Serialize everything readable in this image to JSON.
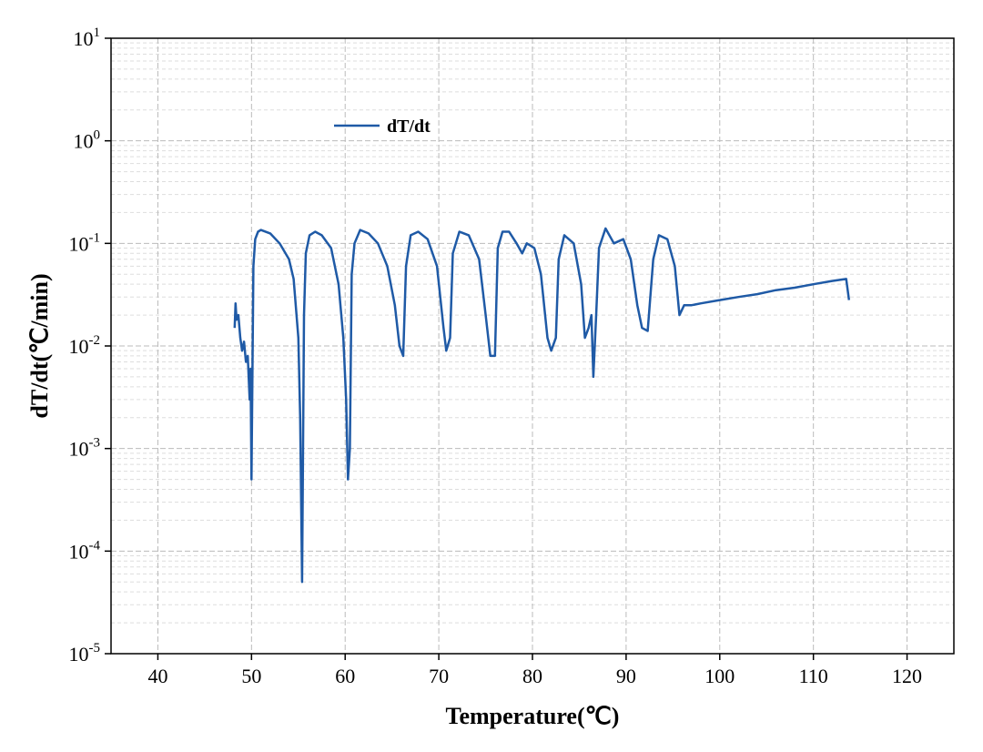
{
  "chart_data": {
    "type": "line",
    "xlabel": "Temperature(℃)",
    "ylabel": "dT/dt(℃/min)",
    "xlim": [
      35,
      125
    ],
    "xticks": [
      40,
      50,
      60,
      70,
      80,
      90,
      100,
      110,
      120
    ],
    "ylim": [
      1e-05,
      10
    ],
    "log_y": true,
    "grid": true,
    "legend": "upper left",
    "yticks": [
      {
        "value": 1e-05,
        "label": "10^-5"
      },
      {
        "value": 0.0001,
        "label": "10^-4"
      },
      {
        "value": 0.001,
        "label": "10^-3"
      },
      {
        "value": 0.01,
        "label": "10^-2"
      },
      {
        "value": 0.1,
        "label": "10^-1"
      },
      {
        "value": 1,
        "label": "10^0"
      },
      {
        "value": 10,
        "label": "10^1"
      }
    ],
    "series": [
      {
        "name": "dT/dt",
        "color": "#1f5aa6",
        "x": [
          48.2,
          48.3,
          48.4,
          48.6,
          48.8,
          49.0,
          49.2,
          49.4,
          49.6,
          49.8,
          49.9,
          50.0,
          50.2,
          50.4,
          50.7,
          51.0,
          52.0,
          53.0,
          54.0,
          54.5,
          55.0,
          55.2,
          55.4,
          55.6,
          55.8,
          56.2,
          56.8,
          57.5,
          58.5,
          59.3,
          59.8,
          60.1,
          60.3,
          60.5,
          60.7,
          61.0,
          61.6,
          62.5,
          63.5,
          64.5,
          65.3,
          65.8,
          66.2,
          66.5,
          67.0,
          67.8,
          68.8,
          69.8,
          70.5,
          70.8,
          71.2,
          71.5,
          72.2,
          73.2,
          74.3,
          75.0,
          75.5,
          76.0,
          76.3,
          76.8,
          77.5,
          78.3,
          78.9,
          79.4,
          80.2,
          80.9,
          81.6,
          82.0,
          82.5,
          82.8,
          83.4,
          84.4,
          85.2,
          85.6,
          86.0,
          86.3,
          86.5,
          86.8,
          87.1,
          87.8,
          88.7,
          89.7,
          90.5,
          91.2,
          91.7,
          92.3,
          92.9,
          93.5,
          94.4,
          95.2,
          95.7,
          96.2,
          97.0,
          98.0,
          100.0,
          102.0,
          104.0,
          106.0,
          108.0,
          110.0,
          112.0,
          113.5,
          113.8
        ],
        "values": [
          0.015,
          0.026,
          0.018,
          0.02,
          0.012,
          0.009,
          0.011,
          0.007,
          0.008,
          0.003,
          0.006,
          0.0005,
          0.06,
          0.11,
          0.13,
          0.135,
          0.125,
          0.1,
          0.07,
          0.045,
          0.012,
          0.002,
          5e-05,
          0.02,
          0.08,
          0.12,
          0.13,
          0.12,
          0.09,
          0.04,
          0.012,
          0.003,
          0.0005,
          0.001,
          0.05,
          0.1,
          0.135,
          0.125,
          0.1,
          0.06,
          0.025,
          0.01,
          0.008,
          0.06,
          0.12,
          0.13,
          0.11,
          0.06,
          0.015,
          0.009,
          0.012,
          0.08,
          0.13,
          0.12,
          0.07,
          0.02,
          0.008,
          0.008,
          0.09,
          0.13,
          0.13,
          0.1,
          0.08,
          0.1,
          0.09,
          0.05,
          0.012,
          0.009,
          0.012,
          0.07,
          0.12,
          0.1,
          0.04,
          0.012,
          0.015,
          0.02,
          0.005,
          0.02,
          0.09,
          0.14,
          0.1,
          0.11,
          0.07,
          0.025,
          0.015,
          0.014,
          0.07,
          0.12,
          0.11,
          0.06,
          0.02,
          0.025,
          0.025,
          0.026,
          0.028,
          0.03,
          0.032,
          0.035,
          0.037,
          0.04,
          0.043,
          0.045,
          0.028
        ]
      }
    ]
  }
}
